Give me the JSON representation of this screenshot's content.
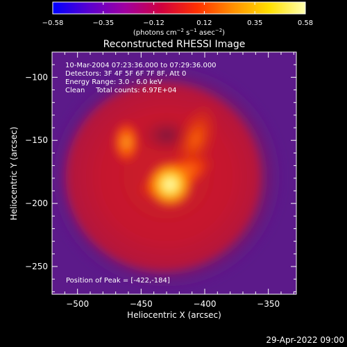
{
  "chart_data": {
    "type": "heatmap",
    "title": "Reconstructed RHESSI Image",
    "colorbar": {
      "ticks": [
        "−0.58",
        "−0.35",
        "−0.12",
        "0.12",
        "0.35",
        "0.58"
      ],
      "range": [
        -0.58,
        0.58
      ],
      "unit_label": "(photons cm",
      "unit_sup1": "−2",
      "unit_mid": " s",
      "unit_sup2": "−1",
      "unit_tail": " asec",
      "unit_sup3": "−2",
      "unit_close": ")",
      "colors": [
        "#0000ff",
        "#5a00d0",
        "#a000a0",
        "#d00040",
        "#ff3000",
        "#ff9000",
        "#ffe000",
        "#ffffb0"
      ]
    },
    "xlabel": "Heliocentric X (arcsec)",
    "ylabel": "Heliocentric Y (arcsec)",
    "xlim": [
      -520,
      -328
    ],
    "ylim": [
      -272,
      -80
    ],
    "x_ticks": [
      {
        "value": -500,
        "label": "−500"
      },
      {
        "value": -450,
        "label": "−450"
      },
      {
        "value": -400,
        "label": "−400"
      },
      {
        "value": -350,
        "label": "−350"
      }
    ],
    "y_ticks": [
      {
        "value": -100,
        "label": "−100"
      },
      {
        "value": -150,
        "label": "−150"
      },
      {
        "value": -200,
        "label": "−200"
      },
      {
        "value": -250,
        "label": "−250"
      }
    ],
    "annotations": [
      "10-Mar-2004 07:23:36.000 to 07:29:36.000",
      "Detectors: 3F 4F 5F 6F 7F 8F, Att 0",
      "Energy Range: 3.0 - 6.0 keV",
      "Clean     Total counts: 6.97E+04"
    ],
    "peak_label": "Position of Peak = [-422,-184]",
    "peak": [
      -422,
      -184
    ],
    "background_color": "#5c1a8a"
  },
  "footer": {
    "date": "29-Apr-2022 09:00"
  }
}
